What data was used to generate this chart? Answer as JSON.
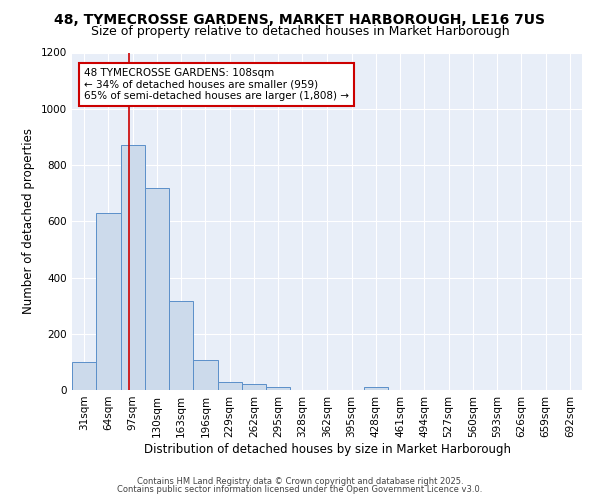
{
  "title1": "48, TYMECROSSE GARDENS, MARKET HARBOROUGH, LE16 7US",
  "title2": "Size of property relative to detached houses in Market Harborough",
  "xlabel": "Distribution of detached houses by size in Market Harborough",
  "ylabel": "Number of detached properties",
  "bin_labels": [
    "31sqm",
    "64sqm",
    "97sqm",
    "130sqm",
    "163sqm",
    "196sqm",
    "229sqm",
    "262sqm",
    "295sqm",
    "328sqm",
    "362sqm",
    "395sqm",
    "428sqm",
    "461sqm",
    "494sqm",
    "527sqm",
    "560sqm",
    "593sqm",
    "626sqm",
    "659sqm",
    "692sqm"
  ],
  "bin_edges": [
    31,
    64,
    97,
    130,
    163,
    196,
    229,
    262,
    295,
    328,
    362,
    395,
    428,
    461,
    494,
    527,
    560,
    593,
    626,
    659,
    692
  ],
  "bar_heights": [
    100,
    630,
    870,
    720,
    315,
    105,
    30,
    22,
    10,
    0,
    0,
    0,
    10,
    0,
    0,
    0,
    0,
    0,
    0,
    0
  ],
  "bar_color": "#ccdaeb",
  "bar_edge_color": "#5b8fc9",
  "vline_x": 108,
  "vline_color": "#cc0000",
  "annotation_title": "48 TYMECROSSE GARDENS: 108sqm",
  "annotation_line1": "← 34% of detached houses are smaller (959)",
  "annotation_line2": "65% of semi-detached houses are larger (1,808) →",
  "annotation_box_color": "#cc0000",
  "ylim": [
    0,
    1200
  ],
  "yticks": [
    0,
    200,
    400,
    600,
    800,
    1000,
    1200
  ],
  "footer1": "Contains HM Land Registry data © Crown copyright and database right 2025.",
  "footer2": "Contains public sector information licensed under the Open Government Licence v3.0.",
  "bg_color": "#ffffff",
  "plot_bg_color": "#e8eef8",
  "grid_color": "#ffffff",
  "title1_fontsize": 10,
  "title2_fontsize": 9,
  "tick_fontsize": 7.5,
  "label_fontsize": 8.5,
  "footer_fontsize": 6.0
}
